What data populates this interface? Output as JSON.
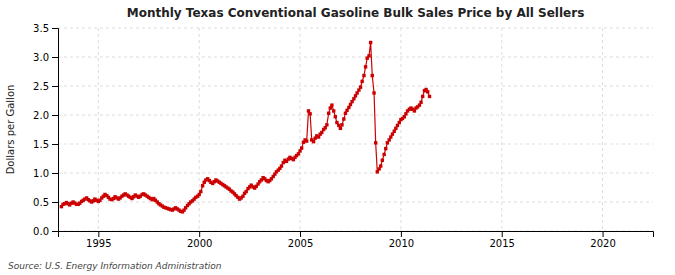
{
  "chart_data": {
    "type": "line",
    "title": "Monthly Texas Conventional Gasoline Bulk Sales Price by All Sellers",
    "ylabel": "Dollars per Gallon",
    "annotations": [
      "Source: U.S. Energy Information Administration"
    ],
    "color": "#CC0000",
    "marker": "square",
    "line_style": "solid",
    "grid": true,
    "xlim": [
      1993.0,
      2022.5
    ],
    "ylim": [
      0.0,
      3.5
    ],
    "xticks": [
      1995,
      2000,
      2005,
      2010,
      2015,
      2020
    ],
    "yticks": [
      {
        "value": 0.0,
        "label": "0.0"
      },
      0.5,
      {
        "value": 1.0,
        "label": "1.0"
      },
      1.5,
      {
        "value": 2.0,
        "label": "2.0"
      },
      2.5,
      {
        "value": 3.0,
        "label": "3.0"
      },
      3.5
    ],
    "x": [
      1993.17,
      1993.25,
      1993.33,
      1993.42,
      1993.5,
      1993.58,
      1993.67,
      1993.75,
      1993.83,
      1993.92,
      1994.0,
      1994.08,
      1994.17,
      1994.25,
      1994.33,
      1994.42,
      1994.5,
      1994.58,
      1994.67,
      1994.75,
      1994.83,
      1994.92,
      1995.0,
      1995.08,
      1995.17,
      1995.25,
      1995.33,
      1995.42,
      1995.5,
      1995.58,
      1995.67,
      1995.75,
      1995.83,
      1995.92,
      1996.0,
      1996.08,
      1996.17,
      1996.25,
      1996.33,
      1996.42,
      1996.5,
      1996.58,
      1996.67,
      1996.75,
      1996.83,
      1996.92,
      1997.0,
      1997.08,
      1997.17,
      1997.25,
      1997.33,
      1997.42,
      1997.5,
      1997.58,
      1997.67,
      1997.75,
      1997.83,
      1997.92,
      1998.0,
      1998.08,
      1998.17,
      1998.25,
      1998.33,
      1998.42,
      1998.5,
      1998.58,
      1998.67,
      1998.75,
      1998.83,
      1998.92,
      1999.0,
      1999.08,
      1999.17,
      1999.25,
      1999.33,
      1999.42,
      1999.5,
      1999.58,
      1999.67,
      1999.75,
      1999.83,
      1999.92,
      2000.0,
      2000.08,
      2000.17,
      2000.25,
      2000.33,
      2000.42,
      2000.5,
      2000.58,
      2000.67,
      2000.75,
      2000.83,
      2000.92,
      2001.0,
      2001.08,
      2001.17,
      2001.25,
      2001.33,
      2001.42,
      2001.5,
      2001.58,
      2001.67,
      2001.75,
      2001.83,
      2001.92,
      2002.0,
      2002.08,
      2002.17,
      2002.25,
      2002.33,
      2002.42,
      2002.5,
      2002.58,
      2002.67,
      2002.75,
      2002.83,
      2002.92,
      2003.0,
      2003.08,
      2003.17,
      2003.25,
      2003.33,
      2003.42,
      2003.5,
      2003.58,
      2003.67,
      2003.75,
      2003.83,
      2003.92,
      2004.0,
      2004.08,
      2004.17,
      2004.25,
      2004.33,
      2004.42,
      2004.5,
      2004.58,
      2004.67,
      2004.75,
      2004.83,
      2004.92,
      2005.0,
      2005.08,
      2005.17,
      2005.25,
      2005.33,
      2005.42,
      2005.5,
      2005.58,
      2005.67,
      2005.75,
      2005.83,
      2005.92,
      2006.0,
      2006.08,
      2006.17,
      2006.25,
      2006.33,
      2006.42,
      2006.5,
      2006.58,
      2006.67,
      2006.75,
      2006.83,
      2006.92,
      2007.0,
      2007.08,
      2007.17,
      2007.25,
      2007.33,
      2007.42,
      2007.5,
      2007.58,
      2007.67,
      2007.75,
      2007.83,
      2007.92,
      2008.0,
      2008.08,
      2008.17,
      2008.25,
      2008.33,
      2008.42,
      2008.5,
      2008.58,
      2008.67,
      2008.75,
      2008.83,
      2008.92,
      2009.0,
      2009.08,
      2009.17,
      2009.25,
      2009.33,
      2009.42,
      2009.5,
      2009.58,
      2009.67,
      2009.75,
      2009.83,
      2009.92,
      2010.0,
      2010.08,
      2010.17,
      2010.25,
      2010.33,
      2010.42,
      2010.5,
      2010.58,
      2010.67,
      2010.75,
      2010.83,
      2010.92,
      2011.0,
      2011.08,
      2011.17,
      2011.25,
      2011.33,
      2011.42
    ],
    "values": [
      0.42,
      0.46,
      0.47,
      0.49,
      0.47,
      0.45,
      0.48,
      0.5,
      0.48,
      0.46,
      0.46,
      0.48,
      0.51,
      0.53,
      0.55,
      0.57,
      0.54,
      0.52,
      0.5,
      0.52,
      0.55,
      0.53,
      0.51,
      0.53,
      0.57,
      0.6,
      0.63,
      0.61,
      0.58,
      0.55,
      0.54,
      0.56,
      0.59,
      0.57,
      0.55,
      0.57,
      0.6,
      0.62,
      0.64,
      0.62,
      0.6,
      0.58,
      0.56,
      0.59,
      0.62,
      0.6,
      0.58,
      0.6,
      0.63,
      0.64,
      0.62,
      0.6,
      0.58,
      0.56,
      0.54,
      0.56,
      0.53,
      0.5,
      0.47,
      0.45,
      0.43,
      0.41,
      0.4,
      0.39,
      0.38,
      0.37,
      0.36,
      0.38,
      0.4,
      0.38,
      0.36,
      0.34,
      0.33,
      0.36,
      0.4,
      0.44,
      0.47,
      0.5,
      0.52,
      0.55,
      0.58,
      0.6,
      0.63,
      0.68,
      0.78,
      0.84,
      0.88,
      0.9,
      0.87,
      0.84,
      0.82,
      0.85,
      0.88,
      0.86,
      0.84,
      0.82,
      0.8,
      0.78,
      0.76,
      0.74,
      0.72,
      0.69,
      0.67,
      0.64,
      0.61,
      0.58,
      0.55,
      0.57,
      0.6,
      0.65,
      0.68,
      0.73,
      0.76,
      0.79,
      0.76,
      0.74,
      0.77,
      0.81,
      0.85,
      0.88,
      0.92,
      0.9,
      0.87,
      0.85,
      0.87,
      0.9,
      0.94,
      0.98,
      1.02,
      1.05,
      1.08,
      1.12,
      1.18,
      1.22,
      1.2,
      1.24,
      1.27,
      1.25,
      1.23,
      1.27,
      1.3,
      1.33,
      1.38,
      1.43,
      1.53,
      1.57,
      1.55,
      2.07,
      2.02,
      1.57,
      1.54,
      1.6,
      1.64,
      1.62,
      1.67,
      1.7,
      1.75,
      1.78,
      1.83,
      2.03,
      2.12,
      2.17,
      2.07,
      1.97,
      1.87,
      1.82,
      1.77,
      1.83,
      1.93,
      2.03,
      2.08,
      2.13,
      2.18,
      2.23,
      2.28,
      2.33,
      2.38,
      2.43,
      2.48,
      2.58,
      2.68,
      2.83,
      2.98,
      3.02,
      3.25,
      2.68,
      2.38,
      1.52,
      1.02,
      1.07,
      1.12,
      1.22,
      1.32,
      1.42,
      1.52,
      1.57,
      1.62,
      1.67,
      1.72,
      1.77,
      1.82,
      1.87,
      1.92,
      1.94,
      1.97,
      2.02,
      2.07,
      2.1,
      2.12,
      2.1,
      2.07,
      2.12,
      2.14,
      2.17,
      2.22,
      2.32,
      2.42,
      2.44,
      2.4,
      2.32
    ]
  }
}
